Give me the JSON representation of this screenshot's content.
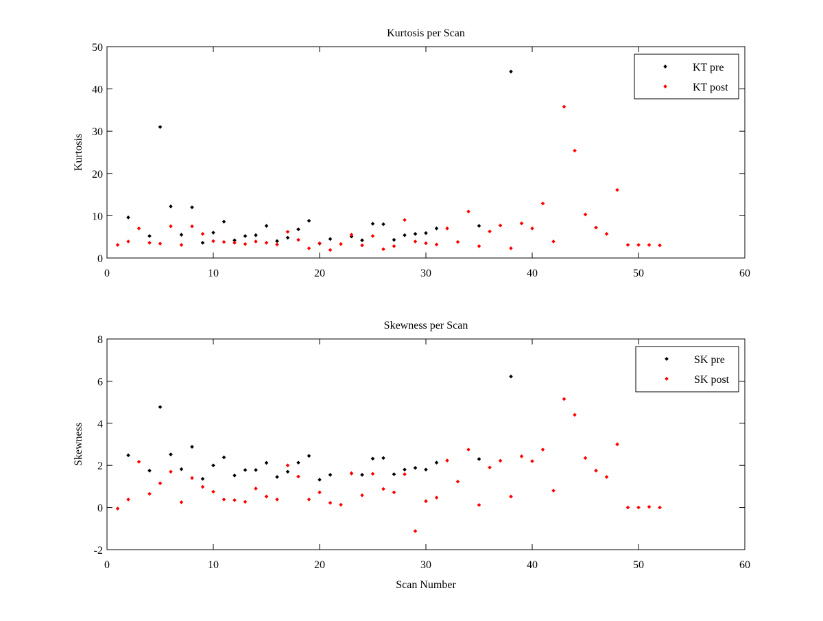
{
  "chart_data": [
    {
      "type": "scatter",
      "title": "Kurtosis per Scan",
      "xlabel": "",
      "ylabel": "Kurtosis",
      "xlim": [
        0,
        60
      ],
      "ylim": [
        0,
        50
      ],
      "xticks": [
        "0",
        "10",
        "20",
        "30",
        "40",
        "50",
        "60"
      ],
      "yticks": [
        "0",
        "10",
        "20",
        "30",
        "40",
        "50"
      ],
      "grid": false,
      "legend_position": "top-right",
      "series": [
        {
          "name": "KT pre",
          "color": "#000000",
          "x": [
            2,
            4,
            5,
            6,
            7,
            8,
            9,
            10,
            11,
            12,
            13,
            14,
            15,
            16,
            17,
            18,
            19,
            20,
            21,
            23,
            24,
            25,
            26,
            27,
            28,
            29,
            30,
            31,
            35,
            38
          ],
          "y": [
            9.6,
            5.2,
            31.0,
            12.2,
            5.5,
            12.0,
            3.6,
            6.0,
            8.6,
            4.2,
            5.2,
            5.4,
            7.6,
            4.0,
            4.8,
            6.8,
            8.8,
            3.4,
            4.5,
            5.1,
            4.2,
            8.1,
            8.0,
            4.3,
            5.4,
            5.7,
            5.9,
            7.0,
            7.6,
            44.1
          ]
        },
        {
          "name": "KT post",
          "color": "#ff0000",
          "x": [
            1,
            2,
            3,
            4,
            5,
            6,
            7,
            8,
            9,
            10,
            11,
            12,
            13,
            14,
            15,
            16,
            17,
            18,
            19,
            20,
            21,
            22,
            23,
            24,
            25,
            26,
            27,
            28,
            29,
            30,
            31,
            32,
            33,
            34,
            35,
            36,
            37,
            38,
            39,
            40,
            41,
            42,
            43,
            44,
            45,
            46,
            47,
            48,
            49,
            50,
            51,
            52
          ],
          "y": [
            3.1,
            3.9,
            7.0,
            3.6,
            3.4,
            7.5,
            3.1,
            7.5,
            5.7,
            4.0,
            3.8,
            3.6,
            3.3,
            3.9,
            3.6,
            3.2,
            6.2,
            4.3,
            2.3,
            3.5,
            1.9,
            3.3,
            5.5,
            3.0,
            5.2,
            2.1,
            2.8,
            9.0,
            3.9,
            3.5,
            3.2,
            7.0,
            3.8,
            11.0,
            2.8,
            6.3,
            7.7,
            2.3,
            8.2,
            7.0,
            12.9,
            3.9,
            35.8,
            25.4,
            10.3,
            7.2,
            5.7,
            16.1,
            3.1,
            3.1,
            3.1,
            3.0
          ]
        }
      ]
    },
    {
      "type": "scatter",
      "title": "Skewness per Scan",
      "xlabel": "Scan Number",
      "ylabel": "Skewness",
      "xlim": [
        0,
        60
      ],
      "ylim": [
        -2,
        8
      ],
      "xticks": [
        "0",
        "10",
        "20",
        "30",
        "40",
        "50",
        "60"
      ],
      "yticks": [
        "-2",
        "0",
        "2",
        "4",
        "6",
        "8"
      ],
      "grid": false,
      "legend_position": "top-right",
      "series": [
        {
          "name": "SK pre",
          "color": "#000000",
          "x": [
            2,
            4,
            5,
            6,
            7,
            8,
            9,
            10,
            11,
            12,
            13,
            14,
            15,
            16,
            17,
            18,
            19,
            20,
            21,
            23,
            24,
            25,
            26,
            27,
            28,
            29,
            30,
            31,
            35,
            38
          ],
          "y": [
            2.48,
            1.75,
            4.77,
            2.52,
            1.82,
            2.88,
            1.36,
            2.0,
            2.38,
            1.52,
            1.78,
            1.78,
            2.12,
            1.45,
            1.7,
            2.13,
            2.45,
            1.32,
            1.55,
            1.62,
            1.55,
            2.32,
            2.35,
            1.58,
            1.8,
            1.88,
            1.8,
            2.13,
            2.3,
            6.22
          ]
        },
        {
          "name": "SK post",
          "color": "#ff0000",
          "x": [
            1,
            2,
            3,
            4,
            5,
            6,
            7,
            8,
            9,
            10,
            11,
            12,
            13,
            14,
            15,
            16,
            17,
            18,
            19,
            20,
            21,
            22,
            23,
            24,
            25,
            26,
            27,
            28,
            29,
            30,
            31,
            32,
            33,
            34,
            35,
            36,
            37,
            38,
            39,
            40,
            41,
            42,
            43,
            44,
            45,
            46,
            47,
            48,
            49,
            50,
            51,
            52
          ],
          "y": [
            -0.05,
            0.38,
            2.17,
            0.65,
            1.15,
            1.7,
            0.25,
            1.4,
            0.98,
            0.75,
            0.38,
            0.35,
            0.27,
            0.9,
            0.52,
            0.38,
            2.0,
            1.47,
            0.38,
            0.72,
            0.22,
            0.13,
            1.62,
            0.58,
            1.6,
            0.88,
            0.72,
            1.58,
            -1.12,
            0.3,
            0.47,
            2.23,
            1.23,
            2.75,
            0.12,
            1.9,
            2.22,
            0.52,
            2.43,
            2.2,
            2.75,
            0.8,
            5.15,
            4.4,
            2.35,
            1.75,
            1.45,
            3.0,
            0.0,
            0.0,
            0.03,
            0.0
          ]
        }
      ]
    }
  ]
}
